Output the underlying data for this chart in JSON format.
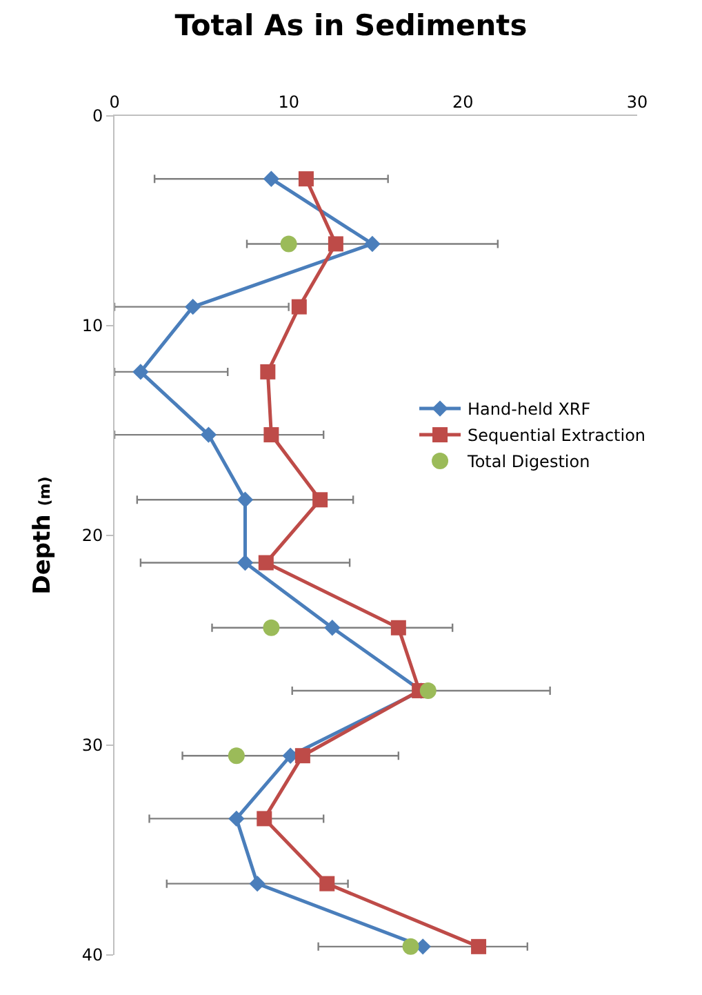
{
  "chart_data": {
    "type": "line",
    "title": "Total As in Sediments",
    "ylabel": "Depth $_{(m)}$",
    "xlim": [
      0,
      30
    ],
    "xticks": [
      0,
      10,
      20,
      30
    ],
    "ylim": [
      40,
      0
    ],
    "yticks": [
      0,
      10,
      20,
      30,
      40
    ],
    "grid": false,
    "legend": "right",
    "series": [
      {
        "name": "Hand-held XRF",
        "marker": "diamond",
        "color": "#4a7ebb",
        "x": [
          9.0,
          14.8,
          4.5,
          1.5,
          5.4,
          7.5,
          7.5,
          12.5,
          17.6,
          10.1,
          7.0,
          8.2,
          17.7
        ],
        "values": [
          3.0,
          6.1,
          9.1,
          12.2,
          15.2,
          18.3,
          21.3,
          24.4,
          27.4,
          30.5,
          33.5,
          36.6,
          39.6
        ],
        "xerrors": [
          6.7,
          7.2,
          [
            0,
            10.0
          ],
          [
            0,
            6.5
          ],
          [
            0,
            12.0
          ],
          6.2,
          6.0,
          6.9,
          7.4,
          6.2,
          5.0,
          5.2,
          6.0
        ]
      },
      {
        "name": "Sequential Extraction",
        "marker": "square",
        "color": "#be4b48",
        "x": [
          11.0,
          12.7,
          10.6,
          8.8,
          9.0,
          11.8,
          8.7,
          16.3,
          17.5,
          10.8,
          8.6,
          12.2,
          20.9
        ],
        "values": [
          3.0,
          6.1,
          9.1,
          12.2,
          15.2,
          18.3,
          21.3,
          24.4,
          27.4,
          30.5,
          33.5,
          36.6,
          39.6
        ]
      },
      {
        "name": "Total Digestion",
        "type": "scatter",
        "marker": "circle",
        "color": "#9bbb59",
        "x": [
          10.0,
          9.0,
          18.0,
          7.0,
          17.0
        ],
        "values": [
          6.1,
          24.4,
          27.4,
          30.5,
          39.6
        ]
      }
    ]
  }
}
